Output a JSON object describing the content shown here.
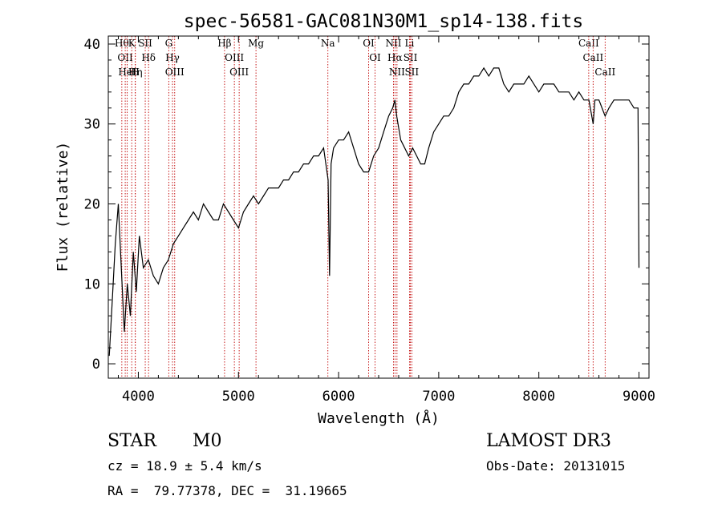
{
  "chart_data": {
    "type": "line",
    "title": "spec-56581-GAC081N30M1_sp14-138.fits",
    "xlabel": "Wavelength (Å)",
    "ylabel": "Flux (relative)",
    "xlim": [
      3700,
      9100
    ],
    "ylim": [
      -1.8,
      41
    ],
    "grid": false,
    "xticks": [
      4000,
      5000,
      6000,
      7000,
      8000,
      9000
    ],
    "xtick_labels": [
      "4000",
      "5000",
      "6000",
      "7000",
      "8000",
      "9000"
    ],
    "yticks": [
      0,
      10,
      20,
      30,
      40
    ],
    "ytick_labels": [
      "0",
      "10",
      "20",
      "30",
      "40"
    ],
    "series": [
      {
        "name": "spectrum",
        "x": [
          3710,
          3740,
          3770,
          3800,
          3830,
          3860,
          3890,
          3920,
          3950,
          3980,
          4010,
          4050,
          4100,
          4150,
          4200,
          4250,
          4300,
          4350,
          4400,
          4450,
          4500,
          4550,
          4600,
          4650,
          4700,
          4750,
          4800,
          4850,
          4900,
          4950,
          5000,
          5050,
          5100,
          5150,
          5200,
          5250,
          5300,
          5350,
          5400,
          5450,
          5500,
          5550,
          5600,
          5650,
          5700,
          5750,
          5800,
          5850,
          5895,
          5910,
          5925,
          5950,
          6000,
          6050,
          6100,
          6150,
          6200,
          6250,
          6300,
          6350,
          6400,
          6450,
          6500,
          6540,
          6563,
          6580,
          6620,
          6660,
          6700,
          6740,
          6780,
          6820,
          6860,
          6900,
          6950,
          7000,
          7050,
          7100,
          7150,
          7200,
          7250,
          7300,
          7350,
          7400,
          7450,
          7500,
          7550,
          7600,
          7650,
          7700,
          7750,
          7800,
          7850,
          7900,
          7950,
          8000,
          8050,
          8100,
          8150,
          8200,
          8250,
          8300,
          8350,
          8400,
          8450,
          8500,
          8542,
          8560,
          8600,
          8662,
          8700,
          8750,
          8800,
          8850,
          8900,
          8950,
          8990,
          9000
        ],
        "y": [
          1,
          8,
          15,
          20,
          12,
          4,
          10,
          6,
          14,
          9,
          16,
          12,
          13,
          11,
          10,
          12,
          13,
          15,
          16,
          17,
          18,
          19,
          18,
          20,
          19,
          18,
          18,
          20,
          19,
          18,
          17,
          19,
          20,
          21,
          20,
          21,
          22,
          22,
          22,
          23,
          23,
          24,
          24,
          25,
          25,
          26,
          26,
          27,
          23,
          11,
          25,
          27,
          28,
          28,
          29,
          27,
          25,
          24,
          24,
          26,
          27,
          29,
          31,
          32,
          33,
          31,
          28,
          27,
          26,
          27,
          26,
          25,
          25,
          27,
          29,
          30,
          31,
          31,
          32,
          34,
          35,
          35,
          36,
          36,
          37,
          36,
          37,
          37,
          35,
          34,
          35,
          35,
          35,
          36,
          35,
          34,
          35,
          35,
          35,
          34,
          34,
          34,
          33,
          34,
          33,
          33,
          30,
          33,
          33,
          31,
          32,
          33,
          33,
          33,
          33,
          32,
          32,
          12
        ]
      }
    ],
    "line_markers": [
      {
        "wave": 3835,
        "label": "Hθ"
      },
      {
        "wave": 3869,
        "label": "OII"
      },
      {
        "wave": 3889,
        "label": "HeI"
      },
      {
        "wave": 3934,
        "label": "K"
      },
      {
        "wave": 3969,
        "label": "H"
      },
      {
        "wave": 3970,
        "label": "Hη"
      },
      {
        "wave": 4069,
        "label": "SII"
      },
      {
        "wave": 4102,
        "label": "Hδ"
      },
      {
        "wave": 4304,
        "label": "G"
      },
      {
        "wave": 4341,
        "label": "Hγ"
      },
      {
        "wave": 4363,
        "label": "OIII"
      },
      {
        "wave": 4861,
        "label": "Hβ"
      },
      {
        "wave": 4959,
        "label": "OIII"
      },
      {
        "wave": 5007,
        "label": "OIII"
      },
      {
        "wave": 5175,
        "label": "Mg"
      },
      {
        "wave": 5893,
        "label": "Na"
      },
      {
        "wave": 6300,
        "label": "OI"
      },
      {
        "wave": 6364,
        "label": "OI"
      },
      {
        "wave": 6548,
        "label": "NII"
      },
      {
        "wave": 6563,
        "label": "Hα"
      },
      {
        "wave": 6583,
        "label": "NII"
      },
      {
        "wave": 6708,
        "label": "Li"
      },
      {
        "wave": 6717,
        "label": "SII"
      },
      {
        "wave": 6731,
        "label": "SII"
      },
      {
        "wave": 8498,
        "label": "CaII"
      },
      {
        "wave": 8542,
        "label": "CaII"
      },
      {
        "wave": 8662,
        "label": "CaII"
      }
    ]
  },
  "footer": {
    "class_label": "STAR",
    "subclass": "M0",
    "survey": "LAMOST DR3",
    "cz_text": "cz = 18.9 ± 5.4 km/s",
    "obs_date_text": "Obs-Date: 20131015",
    "radec_text": "RA =  79.77378, DEC =  31.19665"
  }
}
